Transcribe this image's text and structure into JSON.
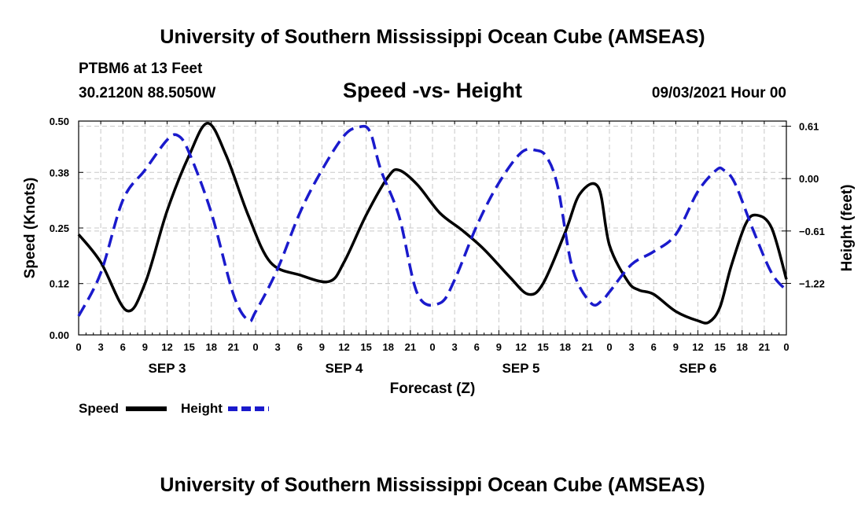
{
  "header": {
    "title": "University of Southern Mississippi Ocean Cube (AMSEAS)",
    "station": "PTBM6 at 13 Feet",
    "coords": "30.2120N  88.5050W",
    "chart_title": "Speed -vs- Height",
    "run": "09/03/2021 Hour 00"
  },
  "footer": {
    "title": "University of Southern Mississippi Ocean Cube (AMSEAS)"
  },
  "legend": {
    "speed_label": "Speed",
    "height_label": "Height"
  },
  "chart_data": {
    "type": "line",
    "title": "Speed -vs- Height",
    "xlabel": "Forecast (Z)",
    "ylabel": "Speed (Knots)",
    "y2label": "Height (feet)",
    "ylim": [
      0,
      0.5
    ],
    "y2lim": [
      -1.82,
      0.67
    ],
    "xlim": [
      0,
      96
    ],
    "x_tick_hours": [
      0,
      3,
      6,
      9,
      12,
      15,
      18,
      21,
      24,
      27,
      30,
      33,
      36,
      39,
      42,
      45,
      48,
      51,
      54,
      57,
      60,
      63,
      66,
      69,
      72,
      75,
      78,
      81,
      84,
      87,
      90,
      93,
      96
    ],
    "x_tick_labels": [
      "0",
      "3",
      "6",
      "9",
      "12",
      "15",
      "18",
      "21",
      "0",
      "3",
      "6",
      "9",
      "12",
      "15",
      "18",
      "21",
      "0",
      "3",
      "6",
      "9",
      "12",
      "15",
      "18",
      "21",
      "0",
      "3",
      "6",
      "9",
      "12",
      "15",
      "18",
      "21",
      "0"
    ],
    "y_ticks": [
      0.0,
      0.12,
      0.25,
      0.38,
      0.5
    ],
    "y_tick_labels": [
      "0.00",
      "0.12",
      "0.25",
      "0.38",
      "0.50"
    ],
    "y2_ticks": [
      0.61,
      0.0,
      -0.61,
      -1.22
    ],
    "y2_tick_labels": [
      "0.61",
      "0.00",
      "−0.61",
      "−1.22"
    ],
    "day_labels": [
      {
        "hour": 12,
        "label": "SEP 3"
      },
      {
        "hour": 36,
        "label": "SEP 4"
      },
      {
        "hour": 60,
        "label": "SEP 5"
      },
      {
        "hour": 84,
        "label": "SEP 6"
      }
    ],
    "series": [
      {
        "name": "Speed",
        "axis": "left",
        "color": "#000000",
        "dash": "solid",
        "x": [
          0,
          3,
          6.5,
          9,
          12,
          15,
          17.5,
          20,
          23,
          26,
          30,
          34,
          36,
          39,
          42,
          43.5,
          46,
          49,
          52,
          55,
          58.5,
          61,
          63,
          66,
          68,
          70.5,
          72,
          74.5,
          76,
          78,
          81,
          84,
          85.5,
          87,
          88.5,
          90.5,
          92,
          94,
          96
        ],
        "y": [
          0.235,
          0.17,
          0.057,
          0.12,
          0.29,
          0.42,
          0.495,
          0.42,
          0.28,
          0.17,
          0.14,
          0.125,
          0.17,
          0.28,
          0.37,
          0.385,
          0.35,
          0.285,
          0.245,
          0.2,
          0.135,
          0.095,
          0.12,
          0.24,
          0.33,
          0.345,
          0.21,
          0.125,
          0.105,
          0.095,
          0.055,
          0.033,
          0.03,
          0.065,
          0.16,
          0.26,
          0.28,
          0.25,
          0.13
        ]
      },
      {
        "name": "Height",
        "axis": "right",
        "color": "#1a1acc",
        "dash": "dashed",
        "x": [
          0,
          3,
          6,
          9,
          12,
          13.5,
          15,
          18,
          21,
          23,
          24,
          27,
          30,
          33,
          36,
          38,
          39.5,
          41,
          43.5,
          46,
          49,
          51,
          54,
          57,
          60,
          62,
          63.5,
          65,
          67,
          69.5,
          71,
          72,
          75,
          78,
          81,
          84,
          86.5,
          87.5,
          89,
          91.5,
          94,
          96
        ],
        "y": [
          -1.6,
          -1.1,
          -0.25,
          0.1,
          0.45,
          0.5,
          0.3,
          -0.4,
          -1.35,
          -1.65,
          -1.55,
          -1.05,
          -0.4,
          0.1,
          0.5,
          0.6,
          0.55,
          0.1,
          -0.45,
          -1.35,
          -1.45,
          -1.18,
          -0.55,
          -0.05,
          0.3,
          0.33,
          0.25,
          -0.1,
          -1.05,
          -1.45,
          -1.42,
          -1.32,
          -1.0,
          -0.85,
          -0.65,
          -0.15,
          0.1,
          0.1,
          -0.05,
          -0.6,
          -1.1,
          -1.3
        ]
      }
    ]
  }
}
